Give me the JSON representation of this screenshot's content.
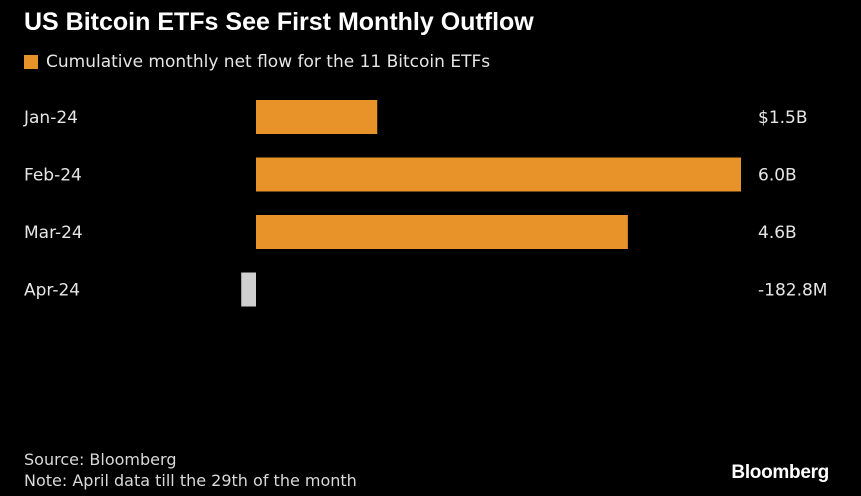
{
  "title": "US Bitcoin ETFs See First Monthly Outflow",
  "legend": {
    "label": "Cumulative monthly net flow for the 11 Bitcoin ETFs"
  },
  "colors": {
    "positive": "#e8922a",
    "negative": "#cfcfcf",
    "background": "#000000"
  },
  "chart_data": {
    "type": "bar",
    "orientation": "horizontal",
    "title": "US Bitcoin ETFs See First Monthly Outflow",
    "legend": [
      "Cumulative monthly net flow for the 11 Bitcoin ETFs"
    ],
    "categories": [
      "Jan-24",
      "Feb-24",
      "Mar-24",
      "Apr-24"
    ],
    "values": [
      1.5,
      6.0,
      4.6,
      -0.1828
    ],
    "value_labels": [
      "$1.5B",
      "6.0B",
      "4.6B",
      "-182.8M"
    ],
    "unit": "USD billions",
    "xlim": [
      -0.2,
      6.0
    ],
    "grid": false
  },
  "footer": {
    "source": "Source: Bloomberg",
    "note": "Note: April data till the 29th of the month"
  },
  "brand": "Bloomberg"
}
